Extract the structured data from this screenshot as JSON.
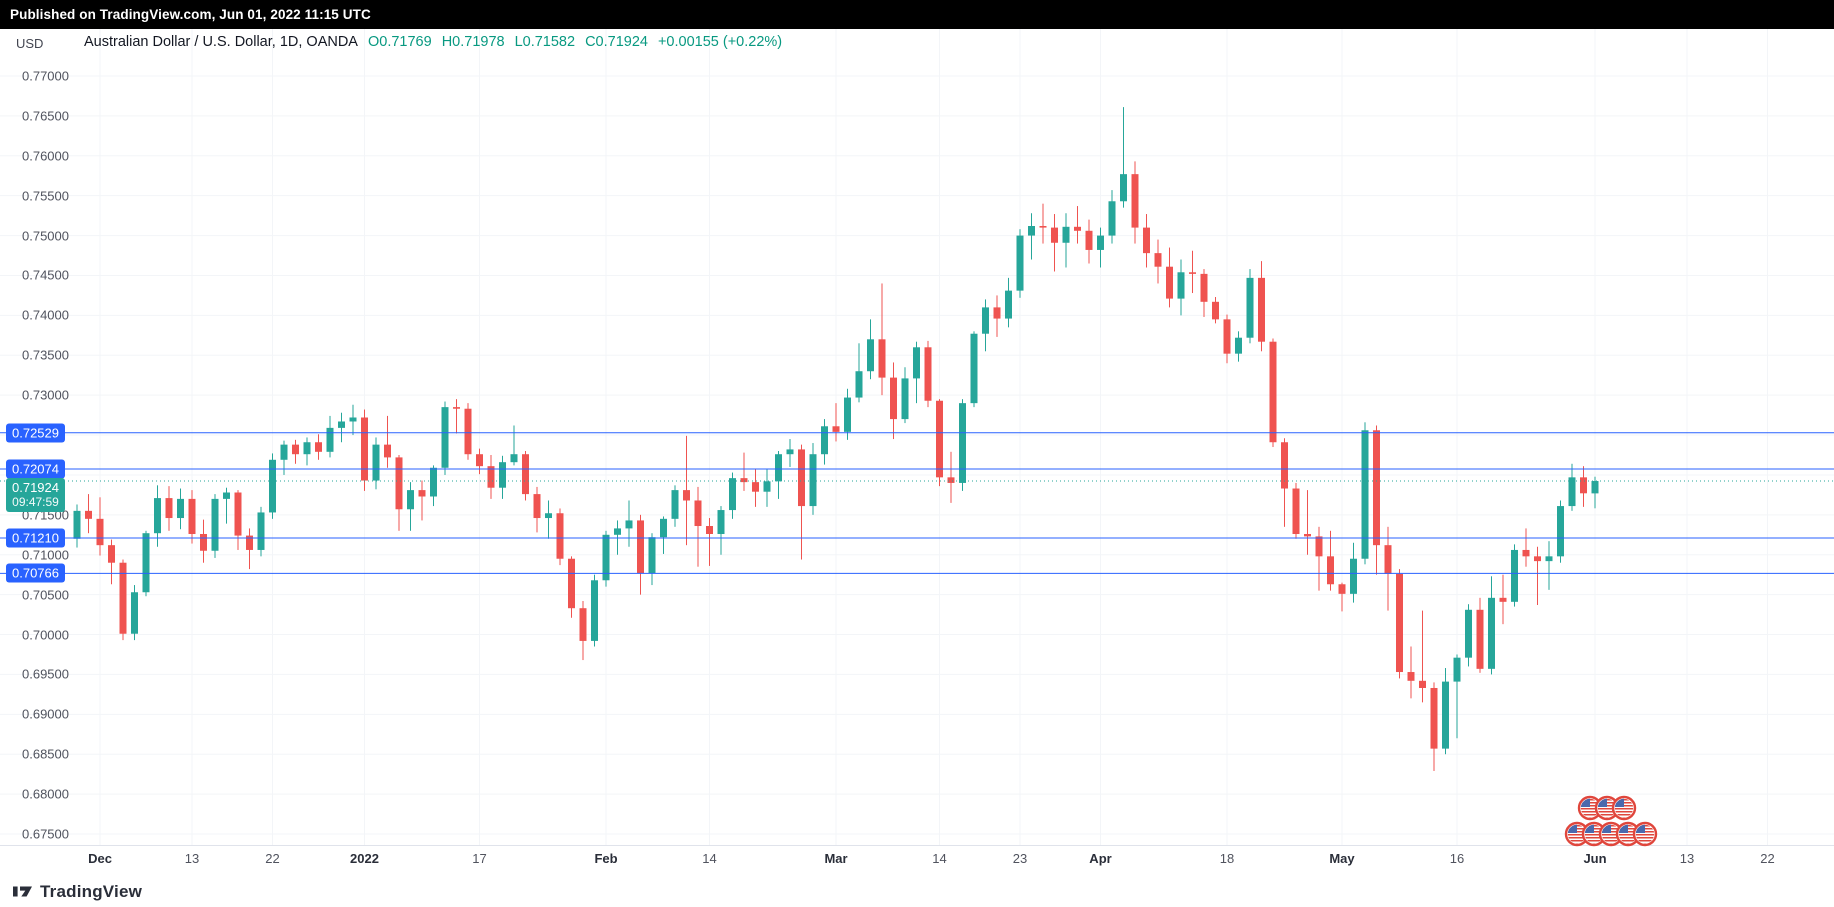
{
  "published_bar": {
    "text": "Published on TradingView.com, Jun 01, 2022 11:15 UTC"
  },
  "header": {
    "currency_label": "USD",
    "symbol_title": "Australian Dollar / U.S. Dollar, 1D, OANDA",
    "ohlc": {
      "open": "O0.71769",
      "high": "H0.71978",
      "low": "L0.71582",
      "close": "C0.71924",
      "change": "+0.00155 (+0.22%)"
    }
  },
  "footer": {
    "brand": "TradingView"
  },
  "colors": {
    "up": "#26a69a",
    "down": "#ef5350",
    "line_blue": "#2962ff",
    "header_value_green": "#089981",
    "axis_text": "#50535e",
    "current_badge": "#26a69a"
  },
  "stickers": {
    "name": "us-flag-event-markers",
    "top_row": 3,
    "bottom_row": 5
  },
  "chart_data": {
    "type": "candlestick",
    "title": "Australian Dollar / U.S. Dollar, 1D, OANDA",
    "symbol": "AUD/USD",
    "exchange": "OANDA",
    "interval": "1D",
    "ylim": [
      0.675,
      0.772
    ],
    "y_tick_step": 0.005,
    "grid": "faint",
    "up_color": "#26a69a",
    "down_color": "#ef5350",
    "y_ticks": [
      "0.77000",
      "0.76500",
      "0.76000",
      "0.75500",
      "0.75000",
      "0.74500",
      "0.74000",
      "0.73500",
      "0.73000",
      "0.71500",
      "0.71000",
      "0.70500",
      "0.70000",
      "0.69500",
      "0.69000",
      "0.68500",
      "0.68000",
      "0.67500"
    ],
    "x_ticks": [
      {
        "label": "Dec",
        "i": 2,
        "major": true
      },
      {
        "label": "13",
        "i": 10,
        "major": false
      },
      {
        "label": "22",
        "i": 17,
        "major": false
      },
      {
        "label": "2022",
        "i": 25,
        "major": true
      },
      {
        "label": "17",
        "i": 35,
        "major": false
      },
      {
        "label": "Feb",
        "i": 46,
        "major": true
      },
      {
        "label": "14",
        "i": 55,
        "major": false
      },
      {
        "label": "Mar",
        "i": 66,
        "major": true
      },
      {
        "label": "14",
        "i": 75,
        "major": false
      },
      {
        "label": "23",
        "i": 82,
        "major": false
      },
      {
        "label": "Apr",
        "i": 89,
        "major": true
      },
      {
        "label": "18",
        "i": 100,
        "major": false
      },
      {
        "label": "May",
        "i": 110,
        "major": true
      },
      {
        "label": "16",
        "i": 120,
        "major": false
      },
      {
        "label": "Jun",
        "i": 132,
        "major": true
      },
      {
        "label": "13",
        "i": 140,
        "major": false
      },
      {
        "label": "22",
        "i": 147,
        "major": false
      }
    ],
    "price_lines": [
      {
        "price": 0.72529,
        "label": "0.72529"
      },
      {
        "price": 0.72074,
        "label": "0.72074"
      },
      {
        "price": 0.7121,
        "label": "0.71210"
      },
      {
        "price": 0.70766,
        "label": "0.70766"
      }
    ],
    "current": {
      "price": 0.71924,
      "label": "0.71924",
      "countdown": "09:47:59"
    },
    "columns": [
      "date",
      "open",
      "high",
      "low",
      "close"
    ],
    "candles": [
      [
        "2021-11-29",
        0.712,
        0.7163,
        0.7109,
        0.7155
      ],
      [
        "2021-11-30",
        0.7155,
        0.7176,
        0.7127,
        0.7145
      ],
      [
        "2021-12-01",
        0.7145,
        0.7172,
        0.7099,
        0.7112
      ],
      [
        "2021-12-02",
        0.7112,
        0.7119,
        0.7063,
        0.709
      ],
      [
        "2021-12-03",
        0.709,
        0.7094,
        0.6993,
        0.7001
      ],
      [
        "2021-12-06",
        0.7001,
        0.7062,
        0.6993,
        0.7053
      ],
      [
        "2021-12-07",
        0.7053,
        0.713,
        0.7048,
        0.7127
      ],
      [
        "2021-12-08",
        0.7127,
        0.7187,
        0.711,
        0.7171
      ],
      [
        "2021-12-09",
        0.7171,
        0.7186,
        0.713,
        0.7146
      ],
      [
        "2021-12-10",
        0.7146,
        0.7183,
        0.7132,
        0.717
      ],
      [
        "2021-12-13",
        0.717,
        0.7181,
        0.7114,
        0.7126
      ],
      [
        "2021-12-14",
        0.7126,
        0.7144,
        0.709,
        0.7105
      ],
      [
        "2021-12-15",
        0.7105,
        0.7176,
        0.7096,
        0.717
      ],
      [
        "2021-12-16",
        0.717,
        0.7184,
        0.7139,
        0.7178
      ],
      [
        "2021-12-17",
        0.7178,
        0.7181,
        0.7106,
        0.7124
      ],
      [
        "2021-12-20",
        0.7124,
        0.7133,
        0.7082,
        0.7106
      ],
      [
        "2021-12-21",
        0.7106,
        0.716,
        0.7098,
        0.7153
      ],
      [
        "2021-12-22",
        0.7153,
        0.7227,
        0.7145,
        0.7219
      ],
      [
        "2021-12-23",
        0.7219,
        0.7243,
        0.72,
        0.7238
      ],
      [
        "2021-12-24",
        0.7238,
        0.7244,
        0.7214,
        0.7226
      ],
      [
        "2021-12-27",
        0.7226,
        0.7247,
        0.7212,
        0.7241
      ],
      [
        "2021-12-28",
        0.7241,
        0.7251,
        0.7219,
        0.7229
      ],
      [
        "2021-12-29",
        0.7229,
        0.7274,
        0.7222,
        0.7259
      ],
      [
        "2021-12-30",
        0.7259,
        0.7278,
        0.7241,
        0.7267
      ],
      [
        "2021-12-31",
        0.7267,
        0.7288,
        0.725,
        0.7272
      ],
      [
        "2022-01-03",
        0.7272,
        0.7282,
        0.718,
        0.7193
      ],
      [
        "2022-01-04",
        0.7193,
        0.7247,
        0.7182,
        0.7238
      ],
      [
        "2022-01-05",
        0.7238,
        0.7274,
        0.7209,
        0.7222
      ],
      [
        "2022-01-06",
        0.7222,
        0.7225,
        0.713,
        0.7157
      ],
      [
        "2022-01-07",
        0.7157,
        0.7191,
        0.713,
        0.7181
      ],
      [
        "2022-01-10",
        0.7181,
        0.7193,
        0.7143,
        0.7173
      ],
      [
        "2022-01-11",
        0.7173,
        0.7212,
        0.7161,
        0.7209
      ],
      [
        "2022-01-12",
        0.7209,
        0.7292,
        0.72,
        0.7285
      ],
      [
        "2022-01-13",
        0.7285,
        0.7295,
        0.7252,
        0.7283
      ],
      [
        "2022-01-14",
        0.7283,
        0.729,
        0.7219,
        0.7226
      ],
      [
        "2022-01-17",
        0.7226,
        0.7233,
        0.7201,
        0.7211
      ],
      [
        "2022-01-18",
        0.7211,
        0.7225,
        0.717,
        0.7184
      ],
      [
        "2022-01-19",
        0.7184,
        0.7224,
        0.717,
        0.7216
      ],
      [
        "2022-01-20",
        0.7216,
        0.7262,
        0.7212,
        0.7226
      ],
      [
        "2022-01-21",
        0.7226,
        0.723,
        0.7168,
        0.7176
      ],
      [
        "2022-01-24",
        0.7176,
        0.7185,
        0.7128,
        0.7146
      ],
      [
        "2022-01-25",
        0.7146,
        0.7168,
        0.712,
        0.7152
      ],
      [
        "2022-01-26",
        0.7152,
        0.7158,
        0.7087,
        0.7095
      ],
      [
        "2022-01-27",
        0.7095,
        0.7098,
        0.7021,
        0.7033
      ],
      [
        "2022-01-28",
        0.7033,
        0.7042,
        0.6968,
        0.6992
      ],
      [
        "2022-01-31",
        0.6992,
        0.7075,
        0.6985,
        0.7068
      ],
      [
        "2022-02-01",
        0.7068,
        0.713,
        0.706,
        0.7125
      ],
      [
        "2022-02-02",
        0.7125,
        0.7143,
        0.71,
        0.7133
      ],
      [
        "2022-02-03",
        0.7133,
        0.7168,
        0.711,
        0.7143
      ],
      [
        "2022-02-04",
        0.7143,
        0.715,
        0.705,
        0.7077
      ],
      [
        "2022-02-07",
        0.7077,
        0.7127,
        0.7062,
        0.7122
      ],
      [
        "2022-02-08",
        0.7122,
        0.7148,
        0.7101,
        0.7145
      ],
      [
        "2022-02-09",
        0.7145,
        0.7187,
        0.7135,
        0.7181
      ],
      [
        "2022-02-10",
        0.7181,
        0.7249,
        0.7112,
        0.7168
      ],
      [
        "2022-02-11",
        0.7168,
        0.7185,
        0.7085,
        0.7136
      ],
      [
        "2022-02-14",
        0.7136,
        0.7146,
        0.7086,
        0.7126
      ],
      [
        "2022-02-15",
        0.7126,
        0.7161,
        0.71,
        0.7156
      ],
      [
        "2022-02-16",
        0.7156,
        0.7203,
        0.7145,
        0.7196
      ],
      [
        "2022-02-17",
        0.7196,
        0.7228,
        0.718,
        0.7191
      ],
      [
        "2022-02-18",
        0.7191,
        0.7208,
        0.716,
        0.7179
      ],
      [
        "2022-02-21",
        0.7179,
        0.7207,
        0.716,
        0.7192
      ],
      [
        "2022-02-22",
        0.7192,
        0.723,
        0.717,
        0.7226
      ],
      [
        "2022-02-23",
        0.7226,
        0.7245,
        0.721,
        0.7232
      ],
      [
        "2022-02-24",
        0.7232,
        0.7238,
        0.7094,
        0.7161
      ],
      [
        "2022-02-25",
        0.7161,
        0.724,
        0.715,
        0.7226
      ],
      [
        "2022-02-28",
        0.7226,
        0.727,
        0.7213,
        0.7261
      ],
      [
        "2022-03-01",
        0.7261,
        0.729,
        0.7242,
        0.7254
      ],
      [
        "2022-03-02",
        0.7254,
        0.7308,
        0.7244,
        0.7297
      ],
      [
        "2022-03-03",
        0.7297,
        0.7365,
        0.7291,
        0.733
      ],
      [
        "2022-03-04",
        0.733,
        0.7395,
        0.732,
        0.737
      ],
      [
        "2022-03-07",
        0.737,
        0.744,
        0.73,
        0.7322
      ],
      [
        "2022-03-08",
        0.7322,
        0.7341,
        0.7245,
        0.727
      ],
      [
        "2022-03-09",
        0.727,
        0.7335,
        0.7265,
        0.7321
      ],
      [
        "2022-03-10",
        0.7321,
        0.7367,
        0.729,
        0.736
      ],
      [
        "2022-03-11",
        0.736,
        0.7368,
        0.7285,
        0.7293
      ],
      [
        "2022-03-14",
        0.7293,
        0.7295,
        0.7186,
        0.7197
      ],
      [
        "2022-03-15",
        0.7197,
        0.7229,
        0.7165,
        0.719
      ],
      [
        "2022-03-16",
        0.719,
        0.7295,
        0.718,
        0.729
      ],
      [
        "2022-03-17",
        0.729,
        0.738,
        0.7285,
        0.7377
      ],
      [
        "2022-03-18",
        0.7377,
        0.742,
        0.7355,
        0.741
      ],
      [
        "2022-03-21",
        0.741,
        0.7425,
        0.7373,
        0.7396
      ],
      [
        "2022-03-22",
        0.7396,
        0.7447,
        0.7385,
        0.7431
      ],
      [
        "2022-03-23",
        0.7431,
        0.7508,
        0.7422,
        0.75
      ],
      [
        "2022-03-24",
        0.75,
        0.7528,
        0.747,
        0.7512
      ],
      [
        "2022-03-25",
        0.7512,
        0.754,
        0.749,
        0.751
      ],
      [
        "2022-03-28",
        0.751,
        0.7527,
        0.7455,
        0.7491
      ],
      [
        "2022-03-29",
        0.7491,
        0.7528,
        0.746,
        0.7511
      ],
      [
        "2022-03-30",
        0.7511,
        0.7537,
        0.749,
        0.7506
      ],
      [
        "2022-03-31",
        0.7506,
        0.752,
        0.7465,
        0.7482
      ],
      [
        "2022-04-01",
        0.7482,
        0.751,
        0.746,
        0.75
      ],
      [
        "2022-04-04",
        0.75,
        0.7557,
        0.749,
        0.7543
      ],
      [
        "2022-04-05",
        0.7543,
        0.7661,
        0.7535,
        0.7577
      ],
      [
        "2022-04-06",
        0.7577,
        0.7593,
        0.749,
        0.751
      ],
      [
        "2022-04-07",
        0.751,
        0.7527,
        0.746,
        0.7478
      ],
      [
        "2022-04-08",
        0.7478,
        0.7495,
        0.744,
        0.7461
      ],
      [
        "2022-04-11",
        0.7461,
        0.7485,
        0.741,
        0.7421
      ],
      [
        "2022-04-12",
        0.7421,
        0.747,
        0.74,
        0.7454
      ],
      [
        "2022-04-13",
        0.7454,
        0.7481,
        0.7428,
        0.7452
      ],
      [
        "2022-04-14",
        0.7452,
        0.7458,
        0.7398,
        0.7417
      ],
      [
        "2022-04-15",
        0.7417,
        0.7423,
        0.739,
        0.7395
      ],
      [
        "2022-04-18",
        0.7395,
        0.7401,
        0.734,
        0.7352
      ],
      [
        "2022-04-19",
        0.7352,
        0.738,
        0.7342,
        0.7372
      ],
      [
        "2022-04-20",
        0.7372,
        0.7458,
        0.7365,
        0.7447
      ],
      [
        "2022-04-21",
        0.7447,
        0.7468,
        0.7355,
        0.7367
      ],
      [
        "2022-04-22",
        0.7367,
        0.7371,
        0.7235,
        0.7241
      ],
      [
        "2022-04-25",
        0.7241,
        0.7246,
        0.7135,
        0.7183
      ],
      [
        "2022-04-26",
        0.7183,
        0.719,
        0.712,
        0.7126
      ],
      [
        "2022-04-27",
        0.7126,
        0.7181,
        0.71,
        0.7123
      ],
      [
        "2022-04-28",
        0.7123,
        0.7135,
        0.7055,
        0.7098
      ],
      [
        "2022-04-29",
        0.7098,
        0.713,
        0.7055,
        0.7063
      ],
      [
        "2022-05-02",
        0.7063,
        0.7065,
        0.7029,
        0.7051
      ],
      [
        "2022-05-03",
        0.7051,
        0.7115,
        0.704,
        0.7095
      ],
      [
        "2022-05-04",
        0.7095,
        0.7266,
        0.7088,
        0.7256
      ],
      [
        "2022-05-05",
        0.7256,
        0.7262,
        0.7075,
        0.7112
      ],
      [
        "2022-05-06",
        0.7112,
        0.7135,
        0.703,
        0.7076
      ],
      [
        "2022-05-09",
        0.7076,
        0.7082,
        0.6945,
        0.6953
      ],
      [
        "2022-05-10",
        0.6953,
        0.6985,
        0.692,
        0.6942
      ],
      [
        "2022-05-11",
        0.6942,
        0.703,
        0.6915,
        0.6933
      ],
      [
        "2022-05-12",
        0.6933,
        0.694,
        0.6829,
        0.6857
      ],
      [
        "2022-05-13",
        0.6857,
        0.6958,
        0.685,
        0.6941
      ],
      [
        "2022-05-16",
        0.6941,
        0.6975,
        0.687,
        0.6971
      ],
      [
        "2022-05-17",
        0.6971,
        0.7038,
        0.696,
        0.7031
      ],
      [
        "2022-05-18",
        0.7031,
        0.7046,
        0.6952,
        0.6957
      ],
      [
        "2022-05-19",
        0.6957,
        0.7073,
        0.695,
        0.7046
      ],
      [
        "2022-05-20",
        0.7046,
        0.7075,
        0.7013,
        0.7041
      ],
      [
        "2022-05-23",
        0.7041,
        0.7113,
        0.7035,
        0.7106
      ],
      [
        "2022-05-24",
        0.7106,
        0.7133,
        0.7085,
        0.7098
      ],
      [
        "2022-05-25",
        0.7098,
        0.711,
        0.7037,
        0.7092
      ],
      [
        "2022-05-26",
        0.7092,
        0.7117,
        0.7056,
        0.7098
      ],
      [
        "2022-05-27",
        0.7098,
        0.7168,
        0.709,
        0.7161
      ],
      [
        "2022-05-30",
        0.7161,
        0.7214,
        0.7155,
        0.7197
      ],
      [
        "2022-05-31",
        0.7197,
        0.7211,
        0.716,
        0.7177
      ],
      [
        "2022-06-01",
        0.71769,
        0.71978,
        0.71582,
        0.71924
      ]
    ]
  }
}
